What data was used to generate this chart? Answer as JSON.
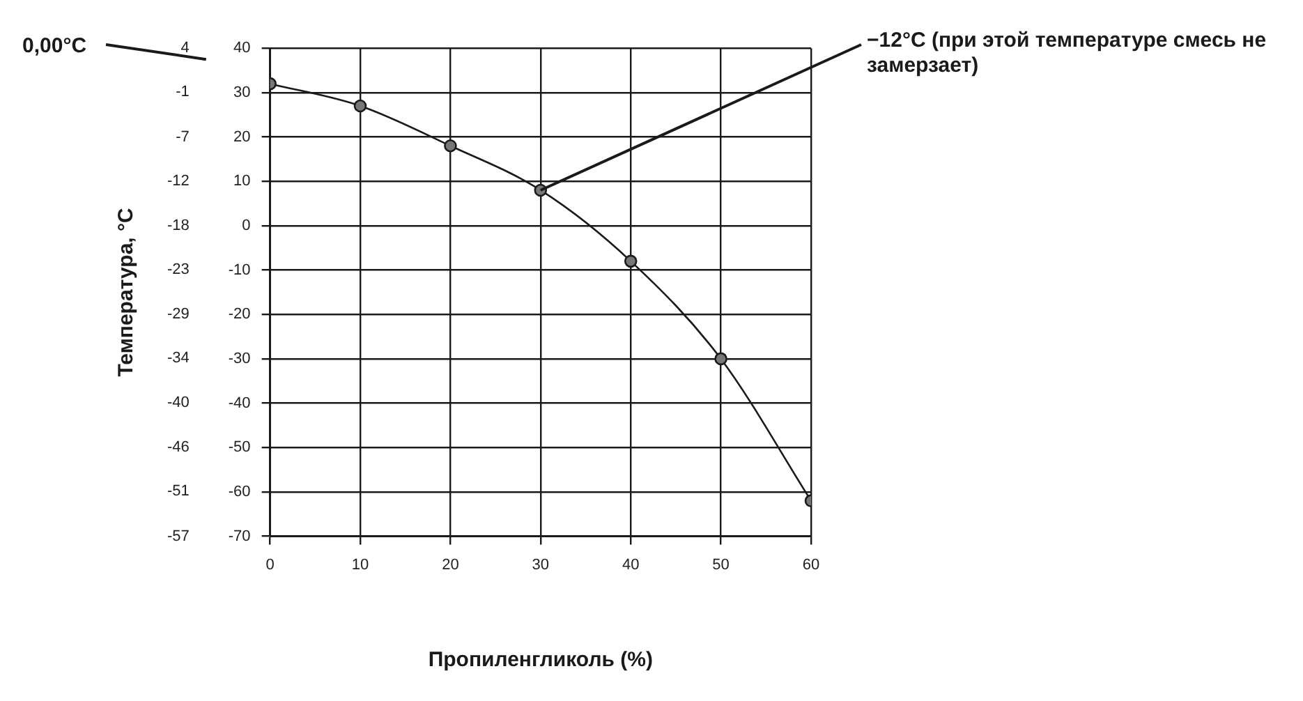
{
  "chart_data": {
    "type": "line",
    "xlabel": "Пропиленгликоль (%)",
    "y2label": "Температура, °C",
    "x": [
      0,
      10,
      20,
      30,
      40,
      50,
      60
    ],
    "series": [
      {
        "color": "#1a1a1a",
        "values": [
          32,
          27,
          18,
          8,
          -8,
          -30,
          -62
        ]
      }
    ],
    "xlim": [
      0,
      60
    ],
    "xticks": [
      0,
      10,
      20,
      30,
      40,
      50,
      60
    ],
    "ylim": [
      -70,
      40
    ],
    "yticks": [
      -70,
      -60,
      -50,
      -40,
      -30,
      -20,
      -10,
      0,
      10,
      20,
      30,
      40
    ],
    "y2lim": [
      -56.7,
      4.4
    ],
    "y2ticks": [
      {
        "value": -56.7,
        "label": "-57"
      },
      {
        "value": -51.1,
        "label": "-51"
      },
      {
        "value": -45.6,
        "label": "-46"
      },
      {
        "value": -40,
        "label": "-40"
      },
      {
        "value": -34.4,
        "label": "-34"
      },
      {
        "value": -28.9,
        "label": "-29"
      },
      {
        "value": -23.3,
        "label": "-23"
      },
      {
        "value": -17.8,
        "label": "-18"
      },
      {
        "value": -12.2,
        "label": "-12"
      },
      {
        "value": -6.7,
        "label": "-7"
      },
      {
        "value": -1.1,
        "label": "-1"
      },
      {
        "value": 4.4,
        "label": "4"
      }
    ],
    "annotations": [
      "0,00°C",
      {
        "text": "−12°C (при этой температуре смесь не замерзает)",
        "x": 30,
        "y": 8
      }
    ],
    "grid": true,
    "marker": "circle",
    "line_style": "solid",
    "legend": false
  }
}
